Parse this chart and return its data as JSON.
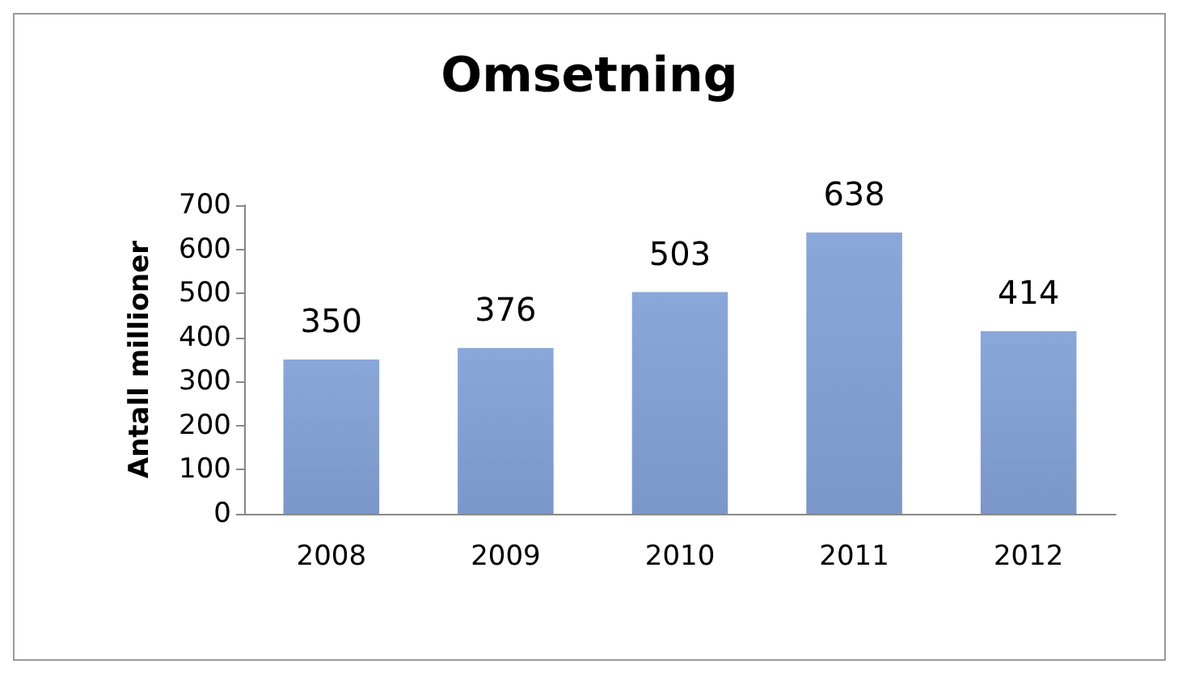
{
  "chart_data": {
    "type": "bar",
    "title": "Omsetning",
    "ylabel": "Antall millioner",
    "categories": [
      "2008",
      "2009",
      "2010",
      "2011",
      "2012"
    ],
    "values": [
      350,
      376,
      503,
      638,
      414
    ],
    "color": "#7b97c9",
    "ylim": [
      0,
      700
    ],
    "yticks": [
      0,
      100,
      200,
      300,
      400,
      500,
      600,
      700
    ],
    "grid": false,
    "data_labels": true
  }
}
